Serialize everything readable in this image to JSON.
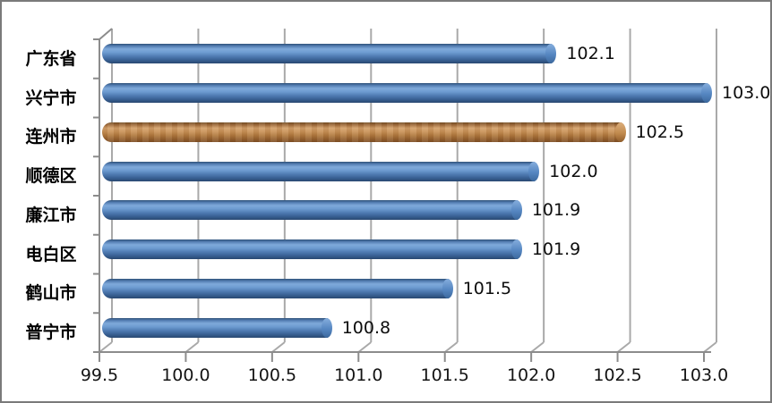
{
  "chart_data": {
    "type": "bar",
    "orientation": "horizontal",
    "style": "3d-cylinder",
    "title": "",
    "xlabel": "",
    "ylabel": "",
    "categories": [
      "广东省",
      "兴宁市",
      "连州市",
      "顺德区",
      "廉江市",
      "电白区",
      "鹤山市",
      "普宁市"
    ],
    "values": [
      102.1,
      103.0,
      102.5,
      102.0,
      101.9,
      101.9,
      101.5,
      100.8
    ],
    "data_labels": [
      "102.1",
      "103.0",
      "102.5",
      "102.0",
      "101.9",
      "101.9",
      "101.5",
      "100.8"
    ],
    "highlight_index": 2,
    "highlighted_category": "连州市",
    "x_tick_values": [
      99.5,
      100.0,
      100.5,
      101.0,
      101.5,
      102.0,
      102.5,
      103.0
    ],
    "x_tick_labels": [
      "99.5",
      "100.0",
      "100.5",
      "101.0",
      "101.5",
      "102.0",
      "102.5",
      "103.0"
    ],
    "xlim": [
      99.5,
      103.0
    ],
    "grid": "vertical-on",
    "legend": "none",
    "colors": {
      "bar": "#4f81bd",
      "highlight_bar": "#c0824e",
      "gridline": "#a9a9a9",
      "axis": "#8c8c8c",
      "text": "#0d0d0d",
      "frame_border": "#7a7a7a",
      "background": "#ffffff"
    }
  }
}
